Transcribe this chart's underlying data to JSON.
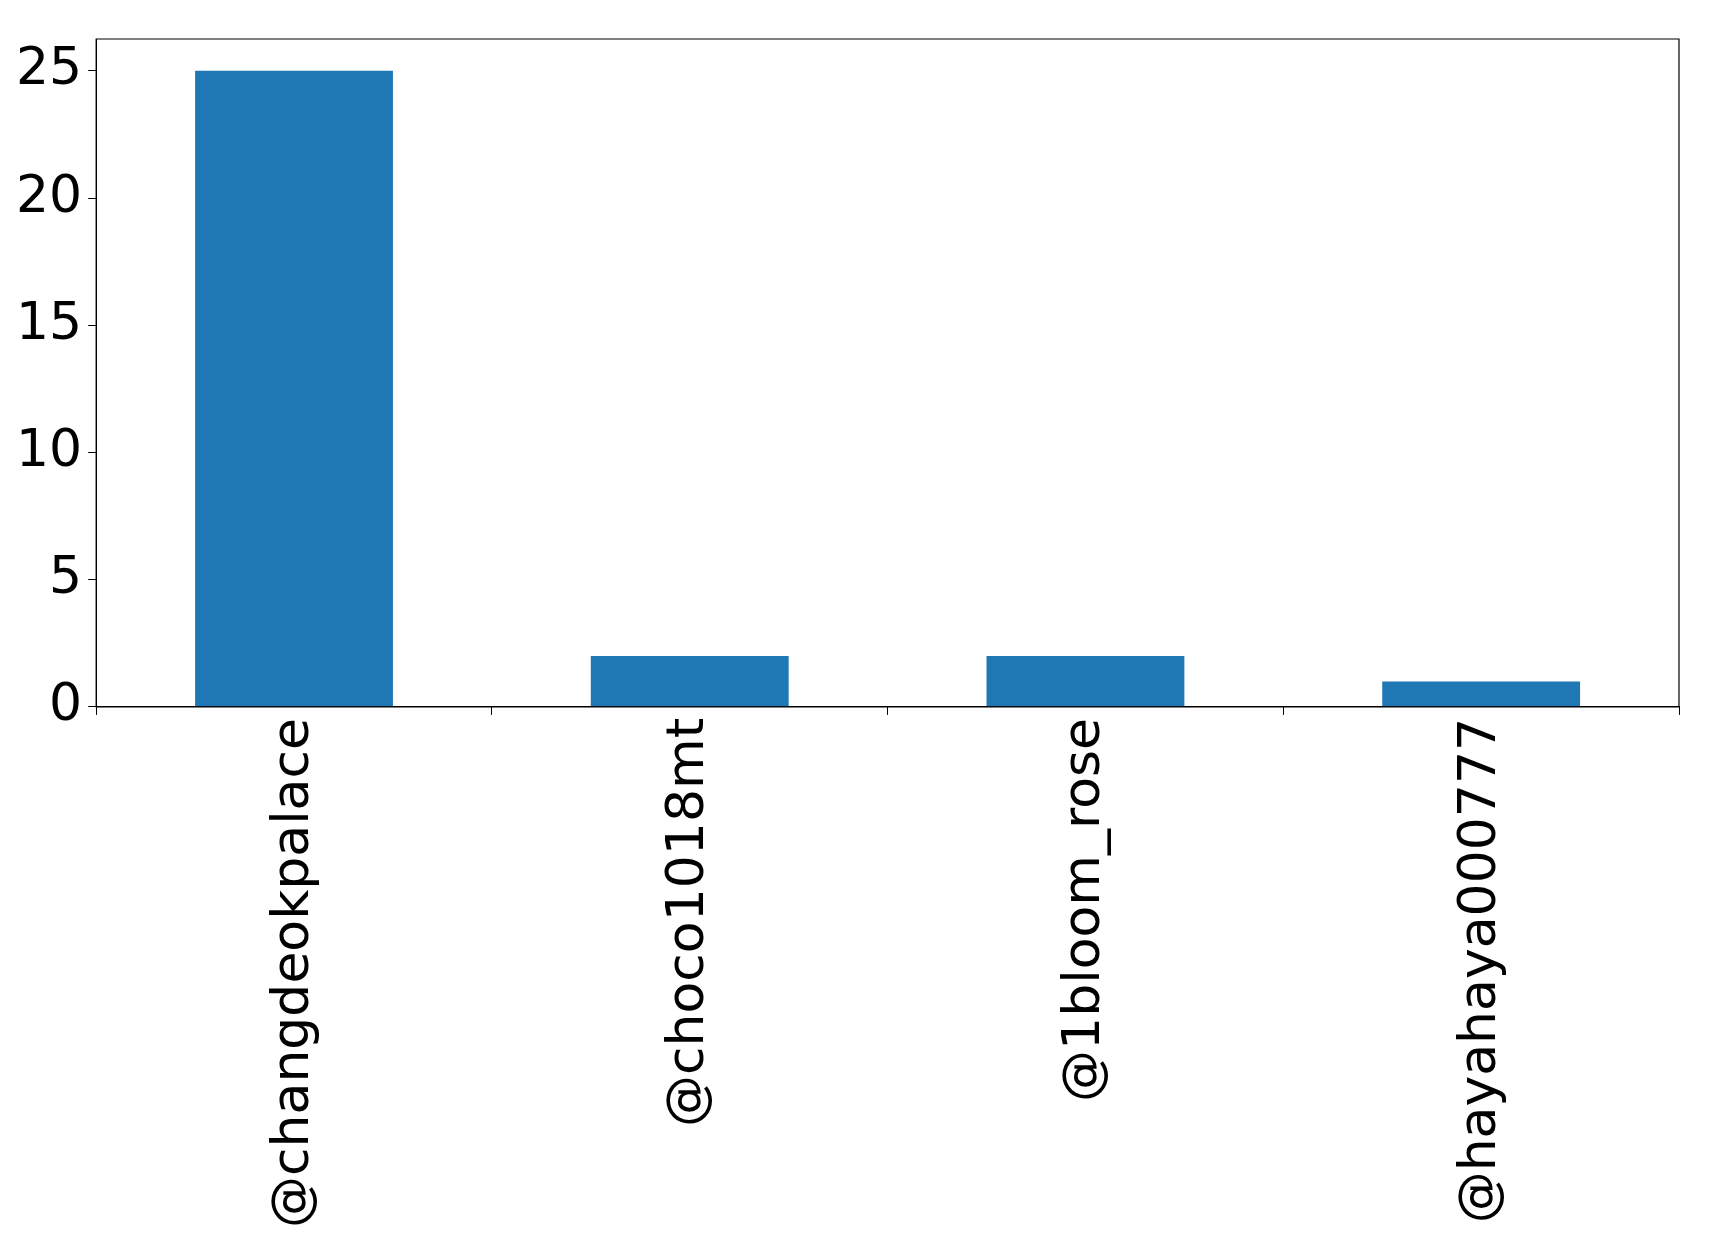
{
  "chart_data": {
    "type": "bar",
    "categories": [
      "@changdeokpalace",
      "@choco1018mt",
      "@1bloom_rose",
      "@hayahaya000777"
    ],
    "values": [
      25,
      2,
      2,
      1
    ],
    "color": "#1f77b4",
    "ylim": [
      0,
      26.25
    ],
    "yticks": [
      0,
      5,
      10,
      15,
      20,
      25
    ],
    "grid": false,
    "legend": false
  }
}
